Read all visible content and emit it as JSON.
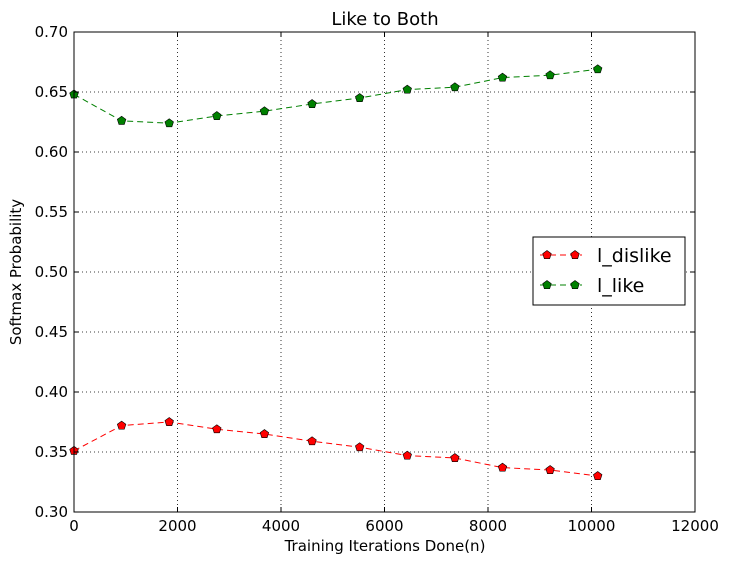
{
  "chart_data": {
    "type": "line",
    "title": "Like to Both",
    "xlabel": "Training Iterations Done(n)",
    "ylabel": "Softmax Probability",
    "xlim": [
      0,
      12000
    ],
    "ylim": [
      0.3,
      0.7
    ],
    "xticks": [
      0,
      2000,
      4000,
      6000,
      8000,
      10000,
      12000
    ],
    "xtick_labels": [
      "0",
      "2000",
      "4000",
      "6000",
      "8000",
      "10000",
      "12000"
    ],
    "yticks": [
      0.3,
      0.35,
      0.4,
      0.45,
      0.5,
      0.55,
      0.6,
      0.65,
      0.7
    ],
    "ytick_labels": [
      "0.30",
      "0.35",
      "0.40",
      "0.45",
      "0.50",
      "0.55",
      "0.60",
      "0.65",
      "0.70"
    ],
    "grid": true,
    "legend_position": "right",
    "x": [
      0,
      920,
      1840,
      2760,
      3680,
      4600,
      5520,
      6440,
      7360,
      8280,
      9200,
      10120
    ],
    "series": [
      {
        "name": "l_dislike",
        "color": "#ff0000",
        "values": [
          0.351,
          0.372,
          0.375,
          0.369,
          0.365,
          0.359,
          0.354,
          0.347,
          0.345,
          0.337,
          0.335,
          0.33
        ]
      },
      {
        "name": "l_like",
        "color": "#008000",
        "values": [
          0.648,
          0.626,
          0.624,
          0.63,
          0.634,
          0.64,
          0.645,
          0.652,
          0.654,
          0.662,
          0.664,
          0.669
        ]
      }
    ]
  }
}
